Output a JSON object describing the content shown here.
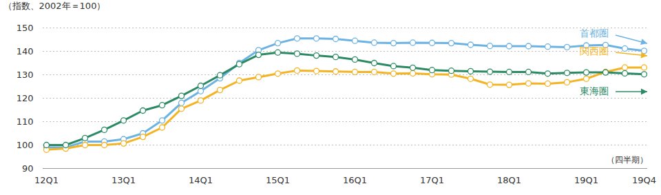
{
  "chart_data": {
    "type": "line",
    "y_label": "（指数、2002年＝100）",
    "x_label": "（四半期）",
    "categories": [
      "12Q1",
      null,
      null,
      null,
      "13Q1",
      null,
      null,
      null,
      "14Q1",
      null,
      null,
      null,
      "15Q1",
      null,
      null,
      null,
      "16Q1",
      null,
      null,
      null,
      "17Q1",
      null,
      null,
      null,
      "18Q1",
      null,
      null,
      null,
      "19Q1",
      null,
      null,
      "19Q4"
    ],
    "series": [
      {
        "name": "首都圏",
        "color": "#6cb2e2",
        "marker": "circle",
        "values": [
          99,
          99,
          101.5,
          101.5,
          102.5,
          105,
          110.5,
          118,
          123,
          128.5,
          135,
          140.5,
          143.5,
          145.5,
          145.5,
          145.3,
          144.5,
          143.7,
          143.5,
          143.7,
          143.6,
          143.5,
          142.8,
          142.3,
          142.2,
          142.2,
          142,
          141.8,
          142.5,
          142.7,
          141.2,
          140.2
        ]
      },
      {
        "name": "関西圏",
        "color": "#f4b323",
        "marker": "circle",
        "values": [
          98,
          98.5,
          100,
          100,
          100.7,
          103.5,
          107.5,
          115.5,
          119,
          123.5,
          127.5,
          129,
          130.5,
          131.8,
          131.6,
          131.4,
          131.2,
          131.2,
          130.5,
          130.6,
          130.2,
          130.1,
          128.3,
          125.8,
          125.7,
          126.3,
          126.2,
          126.8,
          128.3,
          131.2,
          133.1,
          133.1
        ]
      },
      {
        "name": "東海圏",
        "color": "#2b8a63",
        "marker": "circle",
        "values": [
          100,
          100,
          103,
          106.5,
          110.5,
          114.7,
          117,
          121,
          125.3,
          129.8,
          134.5,
          138.5,
          139.5,
          139,
          138.2,
          137.6,
          136.5,
          135,
          133.7,
          133,
          132,
          131.7,
          131.5,
          131.3,
          131.2,
          131.2,
          130.5,
          130.8,
          131,
          131,
          130.6,
          130.2
        ]
      }
    ],
    "ylim": [
      90,
      150
    ],
    "yticks": [
      90,
      100,
      110,
      120,
      130,
      140,
      150
    ],
    "grid": true
  }
}
